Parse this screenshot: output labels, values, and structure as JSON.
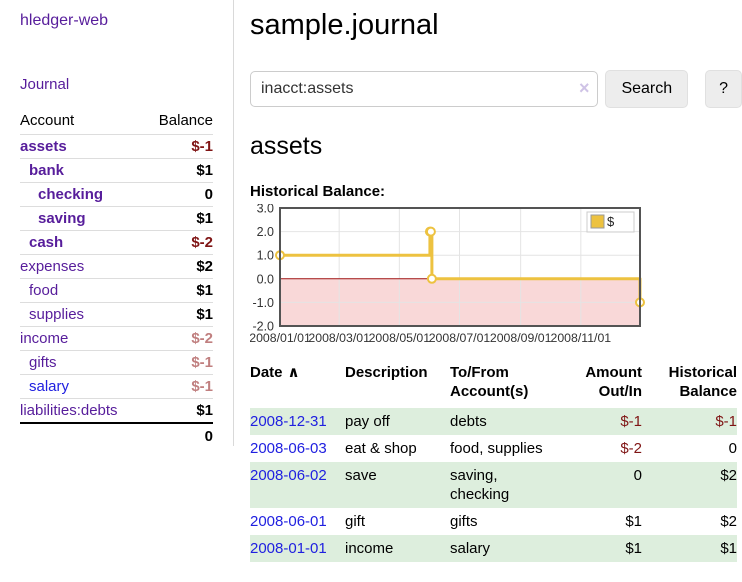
{
  "colors": {
    "link_purple": "#571d9b",
    "link_blue": "#2020e0",
    "negative": "#7f1414",
    "negative_soft": "#c07f7f",
    "row_green": "#ddeedd",
    "chart_line": "#edc240",
    "chart_negative_bg": "#f9d8d8",
    "chart_zero_line": "#a41515",
    "chart_border": "#545454",
    "chart_grid": "#e4e4e4"
  },
  "sidebar": {
    "brand": "hledger-web",
    "journal_link": "Journal",
    "headers": {
      "account": "Account",
      "balance": "Balance"
    },
    "accounts": [
      {
        "name": "assets",
        "indent": 0,
        "balance": "$-1",
        "account_bold": true,
        "balance_color": "negative"
      },
      {
        "name": "bank",
        "indent": 1,
        "balance": "$1",
        "account_bold": true,
        "balance_color": "normal"
      },
      {
        "name": "checking",
        "indent": 2,
        "balance": "0",
        "account_bold": true,
        "balance_color": "normal"
      },
      {
        "name": "saving",
        "indent": 2,
        "balance": "$1",
        "account_bold": true,
        "balance_color": "normal"
      },
      {
        "name": "cash",
        "indent": 1,
        "balance": "$-2",
        "account_bold": true,
        "balance_color": "negative"
      },
      {
        "name": "expenses",
        "indent": 0,
        "balance": "$2",
        "account_bold": false,
        "balance_color": "normal"
      },
      {
        "name": "food",
        "indent": 1,
        "balance": "$1",
        "account_bold": false,
        "balance_color": "normal"
      },
      {
        "name": "supplies",
        "indent": 1,
        "balance": "$1",
        "account_bold": false,
        "balance_color": "normal"
      },
      {
        "name": "income",
        "indent": 0,
        "balance": "$-2",
        "account_bold": false,
        "balance_color": "negative_soft"
      },
      {
        "name": "gifts",
        "indent": 1,
        "balance": "$-1",
        "account_bold": false,
        "balance_color": "negative_soft"
      },
      {
        "name": "salary",
        "indent": 1,
        "balance": "$-1",
        "account_bold": false,
        "balance_color": "negative_soft",
        "link_color": "blue"
      },
      {
        "name": "liabilities:debts",
        "indent": 0,
        "balance": "$1",
        "account_bold": false,
        "balance_color": "normal"
      }
    ],
    "total": "0"
  },
  "main": {
    "title": "sample.journal",
    "search": {
      "value": "inacct:assets",
      "clear_icon": "×",
      "button_label": "Search",
      "help_label": "?"
    },
    "account_heading": "assets"
  },
  "chart_data": {
    "type": "line",
    "title": "Historical Balance:",
    "legend": {
      "position": "top-right",
      "entries": [
        {
          "label": "$",
          "color": "#edc240"
        }
      ]
    },
    "ylim": [
      -2.0,
      3.0
    ],
    "yticks": [
      3.0,
      2.0,
      1.0,
      0.0,
      -1.0,
      -2.0
    ],
    "xticks": [
      {
        "label": "2008/01/01",
        "day": 0
      },
      {
        "label": "2008/03/01",
        "day": 60
      },
      {
        "label": "2008/05/01",
        "day": 121
      },
      {
        "label": "2008/07/01",
        "day": 182
      },
      {
        "label": "2008/09/01",
        "day": 244
      },
      {
        "label": "2008/11/01",
        "day": 305
      }
    ],
    "x_span_days": 365,
    "grid": true,
    "negative_region_shaded": true,
    "series": [
      {
        "name": "$",
        "color": "#edc240",
        "step": true,
        "points": [
          {
            "date": "2008-01-01",
            "day": 0,
            "value": 1
          },
          {
            "date": "2008-06-01",
            "day": 152,
            "value": 2
          },
          {
            "date": "2008-06-02",
            "day": 153,
            "value": 2
          },
          {
            "date": "2008-06-03",
            "day": 154,
            "value": 0
          },
          {
            "date": "2008-12-31",
            "day": 365,
            "value": -1
          }
        ]
      }
    ]
  },
  "register": {
    "sort_indicator": "∧",
    "columns": [
      {
        "lines": [
          "Date"
        ],
        "align": "left",
        "sorted": true
      },
      {
        "lines": [
          "Description"
        ],
        "align": "left"
      },
      {
        "lines": [
          "To/From",
          "Account(s)"
        ],
        "align": "left"
      },
      {
        "lines": [
          "Amount",
          "Out/In"
        ],
        "align": "right"
      },
      {
        "lines": [
          "Historical",
          "Balance"
        ],
        "align": "right"
      }
    ],
    "rows": [
      {
        "date": "2008-12-31",
        "description": "pay off",
        "accounts": "debts",
        "amount": "$-1",
        "amount_negative": true,
        "balance": "$-1",
        "balance_negative": true
      },
      {
        "date": "2008-06-03",
        "description": "eat & shop",
        "accounts": "food, supplies",
        "amount": "$-2",
        "amount_negative": true,
        "balance": "0",
        "balance_negative": false
      },
      {
        "date": "2008-06-02",
        "description": "save",
        "accounts": "saving, checking",
        "amount": "0",
        "amount_negative": false,
        "balance": "$2",
        "balance_negative": false
      },
      {
        "date": "2008-06-01",
        "description": "gift",
        "accounts": "gifts",
        "amount": "$1",
        "amount_negative": false,
        "balance": "$2",
        "balance_negative": false
      },
      {
        "date": "2008-01-01",
        "description": "income",
        "accounts": "salary",
        "amount": "$1",
        "amount_negative": false,
        "balance": "$1",
        "balance_negative": false
      }
    ]
  }
}
